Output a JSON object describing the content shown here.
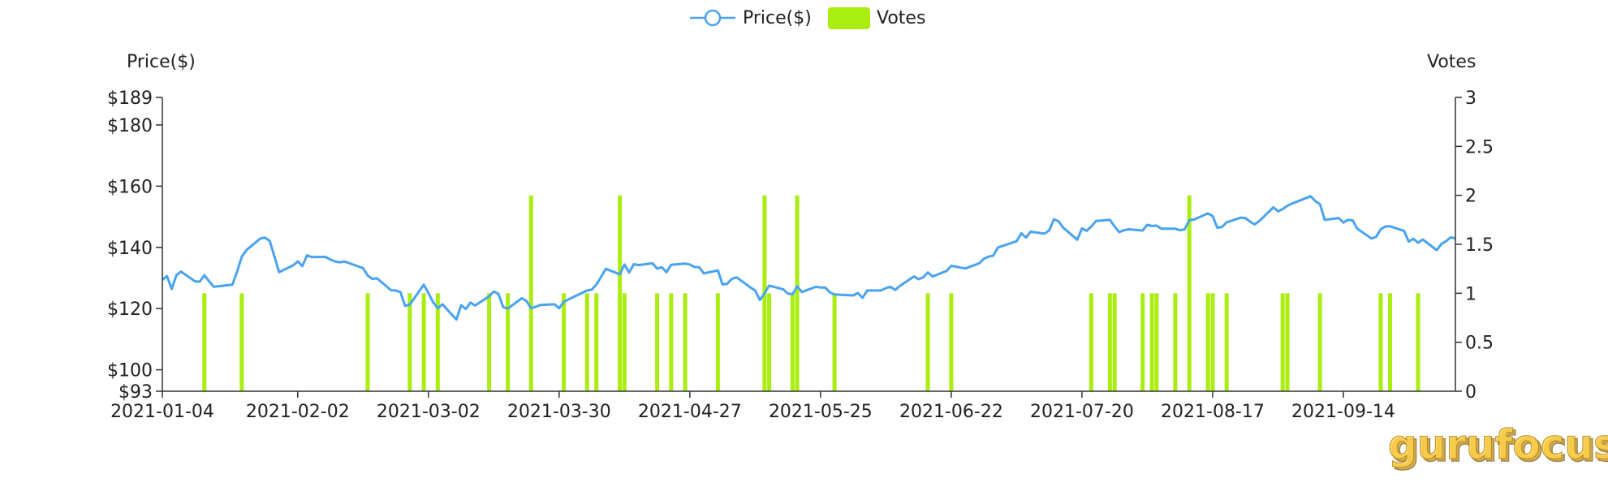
{
  "chart_data": {
    "type": "line+bar",
    "legend": {
      "position": "top-center",
      "price_label": "Price($)",
      "votes_label": "Votes"
    },
    "watermark": "gurufocus",
    "colors": {
      "price": "#4aa3f0",
      "votes": "#aaee11",
      "axis": "#333333"
    },
    "left_axis": {
      "title": "Price($)",
      "ylim": [
        93,
        189
      ],
      "ticks": [
        {
          "value": 93,
          "label": "$93"
        },
        {
          "value": 100,
          "label": "$100"
        },
        {
          "value": 120,
          "label": "$120"
        },
        {
          "value": 140,
          "label": "$140"
        },
        {
          "value": 160,
          "label": "$160"
        },
        {
          "value": 180,
          "label": "$180"
        },
        {
          "value": 189,
          "label": "$189"
        }
      ]
    },
    "right_axis": {
      "title": "Votes",
      "ylim": [
        0,
        3
      ],
      "ticks": [
        {
          "value": 0,
          "label": "0"
        },
        {
          "value": 0.5,
          "label": "0.5"
        },
        {
          "value": 1,
          "label": "1"
        },
        {
          "value": 1.5,
          "label": "1.5"
        },
        {
          "value": 2,
          "label": "2"
        },
        {
          "value": 2.5,
          "label": "2.5"
        },
        {
          "value": 3,
          "label": "3"
        }
      ]
    },
    "x_axis": {
      "ticks": [
        {
          "date": "2021-01-04",
          "label": "2021-01-04"
        },
        {
          "date": "2021-02-02",
          "label": "2021-02-02"
        },
        {
          "date": "2021-03-02",
          "label": "2021-03-02"
        },
        {
          "date": "2021-03-30",
          "label": "2021-03-30"
        },
        {
          "date": "2021-04-27",
          "label": "2021-04-27"
        },
        {
          "date": "2021-05-25",
          "label": "2021-05-25"
        },
        {
          "date": "2021-06-22",
          "label": "2021-06-22"
        },
        {
          "date": "2021-07-20",
          "label": "2021-07-20"
        },
        {
          "date": "2021-08-17",
          "label": "2021-08-17"
        },
        {
          "date": "2021-09-14",
          "label": "2021-09-14"
        }
      ],
      "range": [
        "2021-01-04",
        "2021-10-08"
      ]
    },
    "series": [
      {
        "name": "Price($)",
        "type": "line",
        "points": [
          [
            "2021-01-04",
            129.4
          ],
          [
            "2021-01-05",
            130.6
          ],
          [
            "2021-01-06",
            126.4
          ],
          [
            "2021-01-07",
            130.9
          ],
          [
            "2021-01-08",
            132.1
          ],
          [
            "2021-01-11",
            128.9
          ],
          [
            "2021-01-12",
            128.8
          ],
          [
            "2021-01-13",
            130.9
          ],
          [
            "2021-01-14",
            129.0
          ],
          [
            "2021-01-15",
            127.1
          ],
          [
            "2021-01-19",
            127.8
          ],
          [
            "2021-01-20",
            132.0
          ],
          [
            "2021-01-21",
            136.9
          ],
          [
            "2021-01-22",
            139.1
          ],
          [
            "2021-01-25",
            142.9
          ],
          [
            "2021-01-26",
            143.2
          ],
          [
            "2021-01-27",
            142.1
          ],
          [
            "2021-01-28",
            137.1
          ],
          [
            "2021-01-29",
            131.9
          ],
          [
            "2021-02-01",
            134.1
          ],
          [
            "2021-02-02",
            135.4
          ],
          [
            "2021-02-03",
            133.9
          ],
          [
            "2021-02-04",
            137.4
          ],
          [
            "2021-02-05",
            136.8
          ],
          [
            "2021-02-08",
            136.9
          ],
          [
            "2021-02-09",
            136.0
          ],
          [
            "2021-02-10",
            135.4
          ],
          [
            "2021-02-11",
            135.1
          ],
          [
            "2021-02-12",
            135.4
          ],
          [
            "2021-02-16",
            133.2
          ],
          [
            "2021-02-17",
            130.8
          ],
          [
            "2021-02-18",
            129.7
          ],
          [
            "2021-02-19",
            129.9
          ],
          [
            "2021-02-22",
            126.0
          ],
          [
            "2021-02-23",
            125.9
          ],
          [
            "2021-02-24",
            125.4
          ],
          [
            "2021-02-25",
            120.9
          ],
          [
            "2021-02-26",
            121.3
          ],
          [
            "2021-03-01",
            127.8
          ],
          [
            "2021-03-02",
            125.1
          ],
          [
            "2021-03-03",
            122.1
          ],
          [
            "2021-03-04",
            120.1
          ],
          [
            "2021-03-05",
            121.4
          ],
          [
            "2021-03-08",
            116.4
          ],
          [
            "2021-03-09",
            121.1
          ],
          [
            "2021-03-10",
            119.9
          ],
          [
            "2021-03-11",
            121.96
          ],
          [
            "2021-03-12",
            121.0
          ],
          [
            "2021-03-15",
            124.0
          ],
          [
            "2021-03-16",
            125.6
          ],
          [
            "2021-03-17",
            124.8
          ],
          [
            "2021-03-18",
            120.5
          ],
          [
            "2021-03-19",
            119.99
          ],
          [
            "2021-03-22",
            123.4
          ],
          [
            "2021-03-23",
            122.5
          ],
          [
            "2021-03-24",
            120.1
          ],
          [
            "2021-03-25",
            120.6
          ],
          [
            "2021-03-26",
            121.2
          ],
          [
            "2021-03-29",
            121.4
          ],
          [
            "2021-03-30",
            120.1
          ],
          [
            "2021-03-31",
            122.2
          ],
          [
            "2021-04-01",
            123.0
          ],
          [
            "2021-04-05",
            125.9
          ],
          [
            "2021-04-06",
            126.2
          ],
          [
            "2021-04-07",
            127.9
          ],
          [
            "2021-04-08",
            130.4
          ],
          [
            "2021-04-09",
            133.0
          ],
          [
            "2021-04-12",
            131.2
          ],
          [
            "2021-04-13",
            134.4
          ],
          [
            "2021-04-14",
            131.8
          ],
          [
            "2021-04-15",
            134.5
          ],
          [
            "2021-04-16",
            134.2
          ],
          [
            "2021-04-19",
            134.8
          ],
          [
            "2021-04-20",
            133.1
          ],
          [
            "2021-04-21",
            133.5
          ],
          [
            "2021-04-22",
            131.9
          ],
          [
            "2021-04-23",
            134.3
          ],
          [
            "2021-04-26",
            134.7
          ],
          [
            "2021-04-27",
            134.4
          ],
          [
            "2021-04-28",
            133.6
          ],
          [
            "2021-04-29",
            133.5
          ],
          [
            "2021-04-30",
            131.5
          ],
          [
            "2021-05-03",
            132.5
          ],
          [
            "2021-05-04",
            127.9
          ],
          [
            "2021-05-05",
            128.1
          ],
          [
            "2021-05-06",
            129.7
          ],
          [
            "2021-05-07",
            130.2
          ],
          [
            "2021-05-10",
            126.9
          ],
          [
            "2021-05-11",
            125.9
          ],
          [
            "2021-05-12",
            122.8
          ],
          [
            "2021-05-13",
            124.97
          ],
          [
            "2021-05-14",
            127.5
          ],
          [
            "2021-05-17",
            126.3
          ],
          [
            "2021-05-18",
            124.9
          ],
          [
            "2021-05-19",
            124.7
          ],
          [
            "2021-05-20",
            127.3
          ],
          [
            "2021-05-21",
            125.4
          ],
          [
            "2021-05-24",
            127.1
          ],
          [
            "2021-05-25",
            126.9
          ],
          [
            "2021-05-26",
            126.9
          ],
          [
            "2021-05-27",
            125.3
          ],
          [
            "2021-05-28",
            124.6
          ],
          [
            "2021-06-01",
            124.3
          ],
          [
            "2021-06-02",
            125.1
          ],
          [
            "2021-06-03",
            123.5
          ],
          [
            "2021-06-04",
            125.9
          ],
          [
            "2021-06-07",
            125.9
          ],
          [
            "2021-06-08",
            126.7
          ],
          [
            "2021-06-09",
            127.1
          ],
          [
            "2021-06-10",
            126.1
          ],
          [
            "2021-06-11",
            127.4
          ],
          [
            "2021-06-14",
            130.5
          ],
          [
            "2021-06-15",
            129.6
          ],
          [
            "2021-06-16",
            130.2
          ],
          [
            "2021-06-17",
            131.8
          ],
          [
            "2021-06-18",
            130.5
          ],
          [
            "2021-06-21",
            132.3
          ],
          [
            "2021-06-22",
            133.98
          ],
          [
            "2021-06-23",
            133.7
          ],
          [
            "2021-06-24",
            133.4
          ],
          [
            "2021-06-25",
            133.1
          ],
          [
            "2021-06-28",
            134.8
          ],
          [
            "2021-06-29",
            136.3
          ],
          [
            "2021-06-30",
            136.96
          ],
          [
            "2021-07-01",
            137.3
          ],
          [
            "2021-07-02",
            139.96
          ],
          [
            "2021-07-06",
            142.0
          ],
          [
            "2021-07-07",
            144.6
          ],
          [
            "2021-07-08",
            143.2
          ],
          [
            "2021-07-09",
            145.1
          ],
          [
            "2021-07-12",
            144.5
          ],
          [
            "2021-07-13",
            145.6
          ],
          [
            "2021-07-14",
            149.2
          ],
          [
            "2021-07-15",
            148.5
          ],
          [
            "2021-07-16",
            146.4
          ],
          [
            "2021-07-19",
            142.5
          ],
          [
            "2021-07-20",
            146.2
          ],
          [
            "2021-07-21",
            145.4
          ],
          [
            "2021-07-22",
            146.8
          ],
          [
            "2021-07-23",
            148.6
          ],
          [
            "2021-07-26",
            148.99
          ],
          [
            "2021-07-27",
            146.8
          ],
          [
            "2021-07-28",
            144.98
          ],
          [
            "2021-07-29",
            145.6
          ],
          [
            "2021-07-30",
            145.9
          ],
          [
            "2021-08-02",
            145.5
          ],
          [
            "2021-08-03",
            147.4
          ],
          [
            "2021-08-04",
            147.0
          ],
          [
            "2021-08-05",
            147.1
          ],
          [
            "2021-08-06",
            146.1
          ],
          [
            "2021-08-09",
            146.1
          ],
          [
            "2021-08-10",
            145.6
          ],
          [
            "2021-08-11",
            145.9
          ],
          [
            "2021-08-12",
            148.9
          ],
          [
            "2021-08-13",
            149.1
          ],
          [
            "2021-08-16",
            151.1
          ],
          [
            "2021-08-17",
            150.2
          ],
          [
            "2021-08-18",
            146.4
          ],
          [
            "2021-08-19",
            146.7
          ],
          [
            "2021-08-20",
            148.2
          ],
          [
            "2021-08-23",
            149.7
          ],
          [
            "2021-08-24",
            149.6
          ],
          [
            "2021-08-25",
            148.4
          ],
          [
            "2021-08-26",
            147.5
          ],
          [
            "2021-08-27",
            148.6
          ],
          [
            "2021-08-30",
            153.1
          ],
          [
            "2021-08-31",
            151.8
          ],
          [
            "2021-09-01",
            152.5
          ],
          [
            "2021-09-02",
            153.6
          ],
          [
            "2021-09-03",
            154.3
          ],
          [
            "2021-09-07",
            156.7
          ],
          [
            "2021-09-08",
            155.1
          ],
          [
            "2021-09-09",
            154.1
          ],
          [
            "2021-09-10",
            148.97
          ],
          [
            "2021-09-13",
            149.6
          ],
          [
            "2021-09-14",
            148.1
          ],
          [
            "2021-09-15",
            149.0
          ],
          [
            "2021-09-16",
            148.8
          ],
          [
            "2021-09-17",
            146.1
          ],
          [
            "2021-09-20",
            142.9
          ],
          [
            "2021-09-21",
            143.4
          ],
          [
            "2021-09-22",
            145.9
          ],
          [
            "2021-09-23",
            146.8
          ],
          [
            "2021-09-24",
            146.9
          ],
          [
            "2021-09-27",
            145.4
          ],
          [
            "2021-09-28",
            141.9
          ],
          [
            "2021-09-29",
            142.8
          ],
          [
            "2021-09-30",
            141.5
          ],
          [
            "2021-10-01",
            142.6
          ],
          [
            "2021-10-04",
            139.1
          ],
          [
            "2021-10-05",
            141.1
          ],
          [
            "2021-10-06",
            142.0
          ],
          [
            "2021-10-07",
            143.3
          ],
          [
            "2021-10-08",
            142.9
          ]
        ]
      },
      {
        "name": "Votes",
        "type": "bar",
        "points": [
          [
            "2021-01-13",
            1
          ],
          [
            "2021-01-21",
            1
          ],
          [
            "2021-02-17",
            1
          ],
          [
            "2021-02-26",
            1
          ],
          [
            "2021-03-01",
            1
          ],
          [
            "2021-03-04",
            1
          ],
          [
            "2021-03-15",
            1
          ],
          [
            "2021-03-19",
            1
          ],
          [
            "2021-03-24",
            2
          ],
          [
            "2021-03-31",
            1
          ],
          [
            "2021-04-05",
            1
          ],
          [
            "2021-04-07",
            1
          ],
          [
            "2021-04-12",
            2
          ],
          [
            "2021-04-13",
            1
          ],
          [
            "2021-04-20",
            1
          ],
          [
            "2021-04-23",
            1
          ],
          [
            "2021-04-26",
            1
          ],
          [
            "2021-05-03",
            1
          ],
          [
            "2021-05-13",
            2
          ],
          [
            "2021-05-14",
            1
          ],
          [
            "2021-05-19",
            1
          ],
          [
            "2021-05-20",
            2
          ],
          [
            "2021-05-28",
            1
          ],
          [
            "2021-06-17",
            1
          ],
          [
            "2021-06-22",
            1
          ],
          [
            "2021-07-22",
            1
          ],
          [
            "2021-07-26",
            1
          ],
          [
            "2021-07-27",
            1
          ],
          [
            "2021-08-02",
            1
          ],
          [
            "2021-08-04",
            1
          ],
          [
            "2021-08-05",
            1
          ],
          [
            "2021-08-09",
            1
          ],
          [
            "2021-08-12",
            2
          ],
          [
            "2021-08-16",
            1
          ],
          [
            "2021-08-17",
            1
          ],
          [
            "2021-08-20",
            1
          ],
          [
            "2021-09-01",
            1
          ],
          [
            "2021-09-02",
            1
          ],
          [
            "2021-09-09",
            1
          ],
          [
            "2021-09-22",
            1
          ],
          [
            "2021-09-24",
            1
          ],
          [
            "2021-09-30",
            1
          ]
        ]
      }
    ]
  }
}
